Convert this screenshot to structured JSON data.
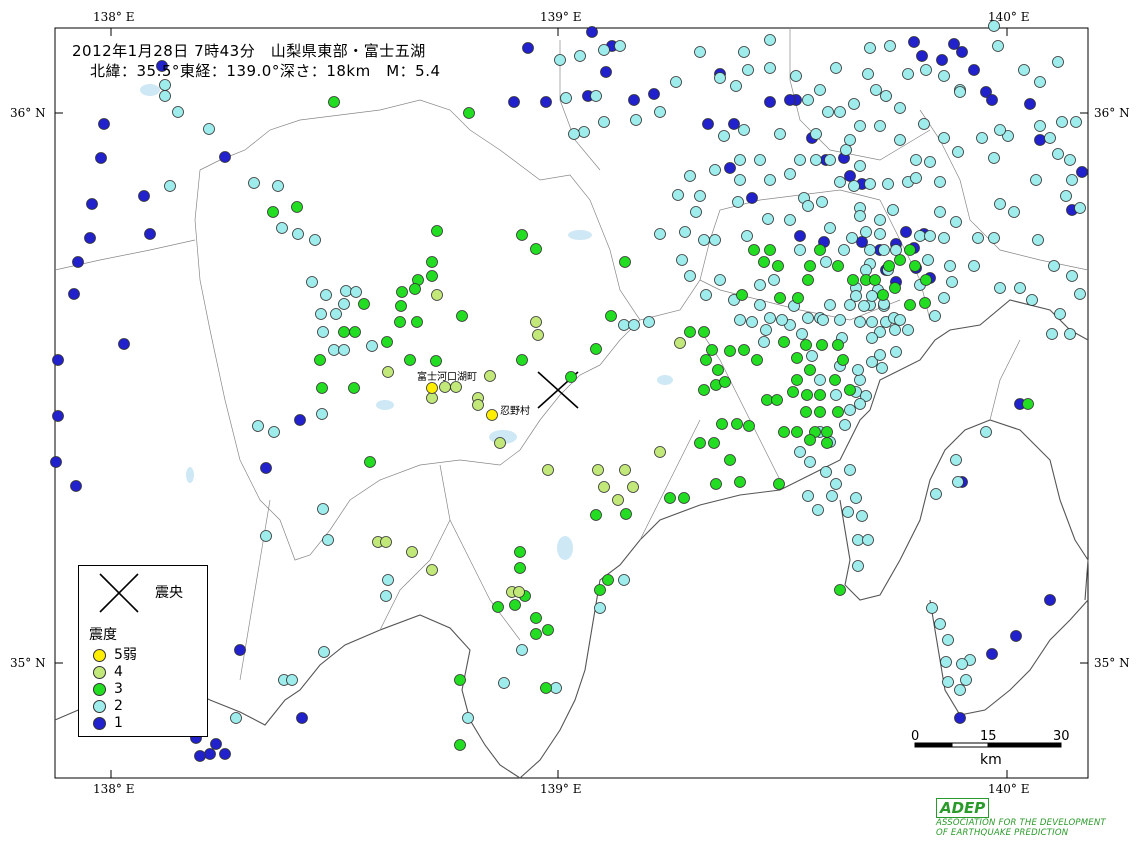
{
  "title": {
    "line1": "2012年1月28日 7時43分　山梨県東部・富士五湖",
    "line2": "北緯：35.5°東経：139.0°深さ：18km　M：5.4"
  },
  "axes": {
    "lon_top": [
      "138°  E",
      "139°  E",
      "140°  E"
    ],
    "lon_bottom": [
      "138°  E",
      "139°  E",
      "140°  E"
    ],
    "lat_left": [
      "36°  N",
      "35°  N"
    ],
    "lat_right": [
      "36°  N",
      "35°  N"
    ]
  },
  "places": [
    "富士河口湖町",
    "忍野村"
  ],
  "legend": {
    "epicenter_label": "震央",
    "intensity_title": "震度",
    "items": [
      {
        "label": "5弱",
        "color": "#ffee00"
      },
      {
        "label": "4",
        "color": "#c2e87a"
      },
      {
        "label": "3",
        "color": "#22dd22"
      },
      {
        "label": "2",
        "color": "#9fecec"
      },
      {
        "label": "1",
        "color": "#2222cc"
      }
    ]
  },
  "scalebar": {
    "labels": [
      "0",
      "15",
      "30"
    ],
    "unit": "km"
  },
  "logo": {
    "mark": "ADEP",
    "line1": "ASSOCIATION FOR THE DEVELOPMENT",
    "line2": "OF EARTHQUAKE PREDICTION"
  },
  "colors": {
    "i5": "#ffee00",
    "i4": "#c2e87a",
    "i3": "#22dd22",
    "i2": "#9fecec",
    "i1": "#2222cc"
  }
}
